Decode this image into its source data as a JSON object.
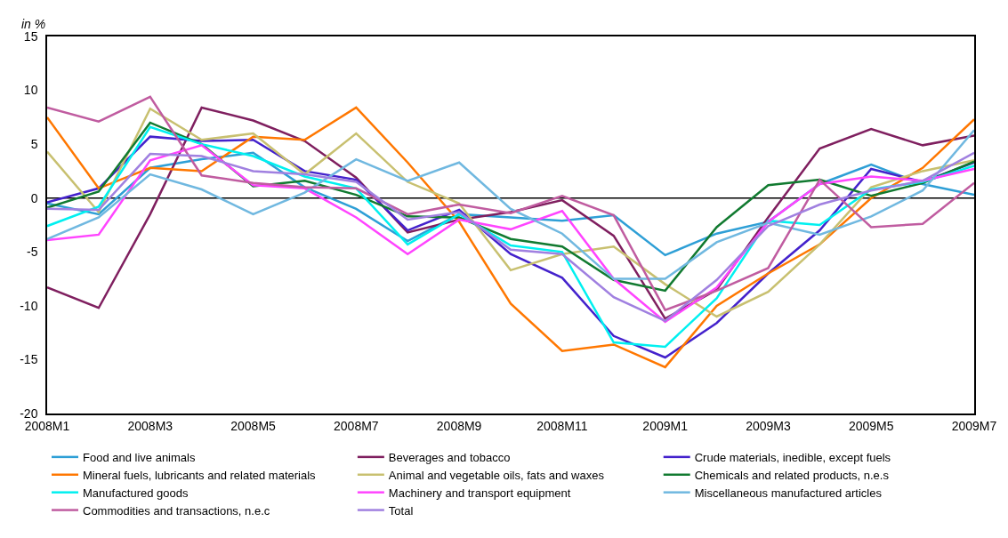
{
  "chart_data": {
    "type": "line",
    "ylabel": "in %",
    "categories": [
      "2008M1",
      null,
      "2008M3",
      null,
      "2008M5",
      null,
      "2008M7",
      null,
      "2008M9",
      null,
      "2008M11",
      null,
      "2009M1",
      null,
      "2009M3",
      null,
      "2009M5",
      null,
      "2009M7"
    ],
    "ylim": [
      -20,
      15
    ],
    "yticks": [
      -20,
      -15,
      -10,
      -5,
      0,
      5,
      10,
      15
    ],
    "grid": false,
    "ref_lines": [
      {
        "axis": "y",
        "value": 0,
        "color": "#000000"
      }
    ],
    "legend": "bottom",
    "marker": "none",
    "line_style": "solid",
    "series": [
      {
        "name": "Food and live animals",
        "color": "#2e9fd6",
        "values": [
          -0.5,
          -1.5,
          2.8,
          3.6,
          4.2,
          1.0,
          -1.0,
          -4.0,
          -1.5,
          -1.8,
          -2.1,
          -1.6,
          -5.3,
          -3.3,
          -2.2,
          1.3,
          3.1,
          1.3,
          0.3
        ]
      },
      {
        "name": "Beverages and tobacco",
        "color": "#7f1f5f",
        "values": [
          -8.3,
          -10.2,
          -1.5,
          8.4,
          7.2,
          5.3,
          1.9,
          -3.2,
          -2.0,
          -1.3,
          -0.2,
          -3.5,
          -11.2,
          -8.5,
          -1.8,
          4.6,
          6.4,
          4.9,
          5.8
        ]
      },
      {
        "name": "Crude materials, inedible, except fuels",
        "color": "#4422cc",
        "values": [
          -0.4,
          0.9,
          5.7,
          5.3,
          5.4,
          2.5,
          1.7,
          -3.0,
          -1.1,
          -5.2,
          -7.4,
          -12.8,
          -14.8,
          -11.6,
          -7.0,
          -3.0,
          2.7,
          1.5,
          3.3
        ]
      },
      {
        "name": "Mineral fuels, lubricants and related materials",
        "color": "#ff7700",
        "values": [
          7.5,
          0.9,
          2.8,
          2.5,
          5.7,
          5.4,
          8.4,
          3.3,
          -2.2,
          -9.8,
          -14.2,
          -13.6,
          -15.7,
          -10.0,
          -7.0,
          -4.3,
          0.0,
          2.8,
          7.3
        ]
      },
      {
        "name": "Animal and vegetable oils, fats and waxes",
        "color": "#c8c070",
        "values": [
          4.3,
          -1.3,
          8.3,
          5.4,
          6.0,
          2.2,
          6.0,
          1.5,
          -0.5,
          -6.7,
          -5.2,
          -4.5,
          -8.0,
          -11.0,
          -8.7,
          -4.3,
          1.0,
          2.5,
          3.5
        ]
      },
      {
        "name": "Chemicals and related products, n.e.s",
        "color": "#117a30",
        "values": [
          -0.9,
          0.6,
          7.0,
          5.0,
          1.1,
          1.6,
          0.3,
          -1.7,
          -1.8,
          -3.8,
          -4.5,
          -7.6,
          -8.6,
          -2.7,
          1.2,
          1.7,
          0.2,
          1.4,
          3.4
        ]
      },
      {
        "name": "Manufactured goods",
        "color": "#00f0f0",
        "values": [
          -2.6,
          -0.8,
          6.6,
          5.0,
          3.9,
          2.0,
          0.9,
          -4.3,
          -1.5,
          -4.4,
          -5.0,
          -13.4,
          -13.8,
          -9.3,
          -2.1,
          -2.5,
          0.8,
          1.5,
          3.0
        ]
      },
      {
        "name": "Machinery and transport equipment",
        "color": "#ff44ff",
        "values": [
          -3.9,
          -3.4,
          3.5,
          4.9,
          1.2,
          0.9,
          -1.8,
          -5.2,
          -2.0,
          -2.9,
          -1.2,
          -7.5,
          -11.5,
          -8.3,
          -2.2,
          1.3,
          2.0,
          1.6,
          2.7
        ]
      },
      {
        "name": "Miscellaneous manufactured articles",
        "color": "#70b8e0",
        "values": [
          -3.8,
          -1.8,
          2.2,
          0.8,
          -1.5,
          0.5,
          3.6,
          1.6,
          3.3,
          -1.0,
          -3.3,
          -7.5,
          -7.5,
          -4.1,
          -2.3,
          -3.4,
          -1.7,
          0.7,
          6.3
        ]
      },
      {
        "name": "Commodities and transactions, n.e.c",
        "color": "#c05ca0",
        "values": [
          8.4,
          7.1,
          9.4,
          2.1,
          1.4,
          1.0,
          0.9,
          -1.5,
          -0.6,
          -1.4,
          0.2,
          -1.6,
          -10.4,
          -8.6,
          -6.5,
          1.7,
          -2.7,
          -2.4,
          1.4
        ]
      },
      {
        "name": "Total",
        "color": "#a080e0",
        "values": [
          -1.0,
          -1.1,
          4.1,
          3.9,
          2.5,
          2.2,
          1.5,
          -2.0,
          -1.3,
          -4.8,
          -5.2,
          -9.2,
          -11.4,
          -7.6,
          -2.6,
          -0.6,
          0.7,
          1.6,
          4.2
        ]
      }
    ]
  }
}
